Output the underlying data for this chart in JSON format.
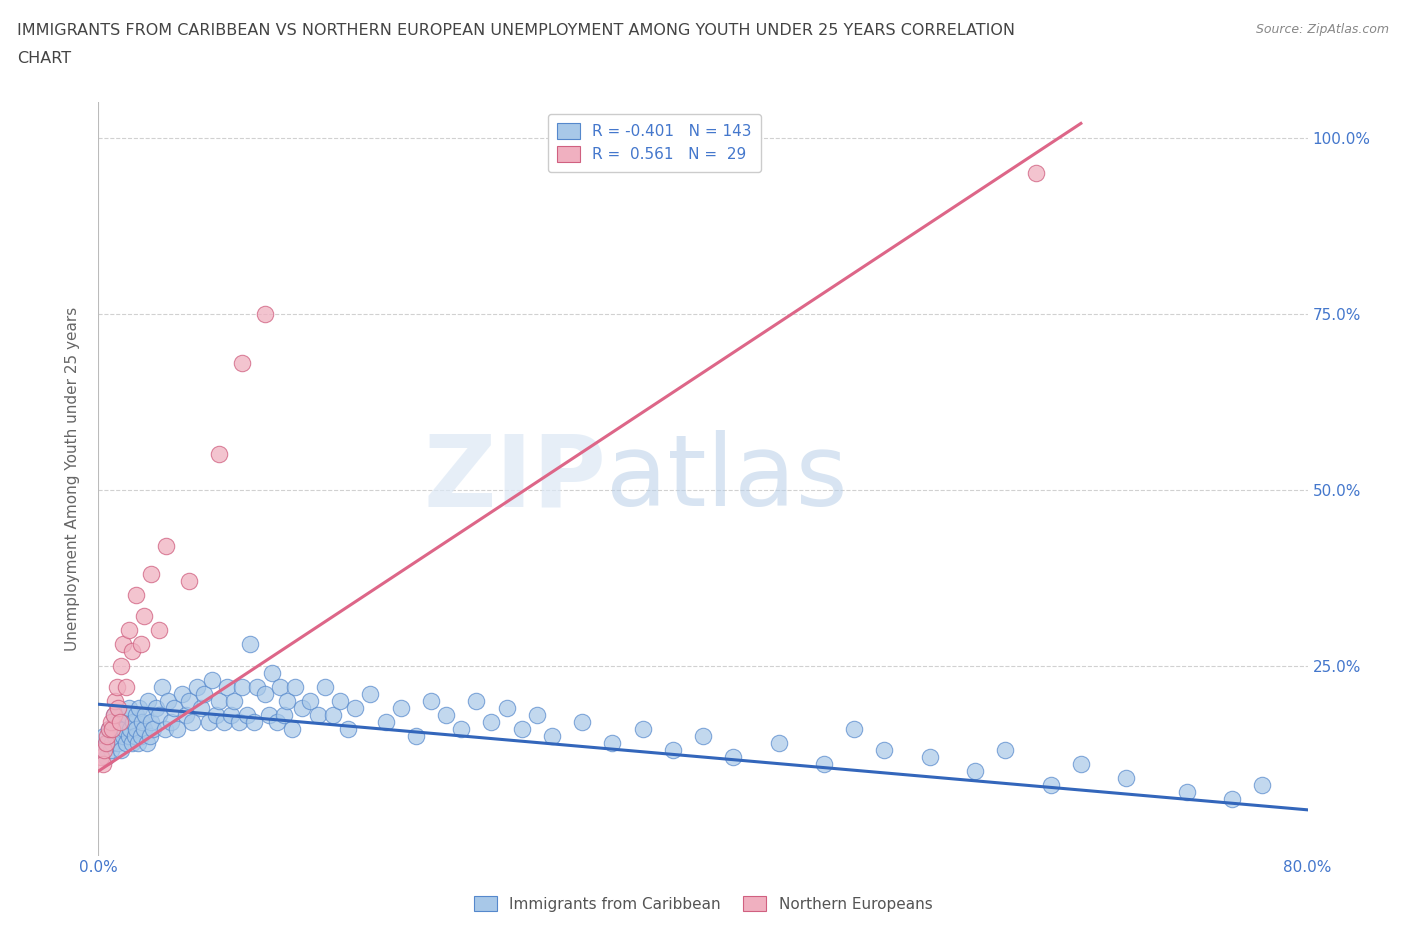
{
  "title_line1": "IMMIGRANTS FROM CARIBBEAN VS NORTHERN EUROPEAN UNEMPLOYMENT AMONG YOUTH UNDER 25 YEARS CORRELATION",
  "title_line2": "CHART",
  "source": "Source: ZipAtlas.com",
  "ylabel": "Unemployment Among Youth under 25 years",
  "xlim": [
    0.0,
    0.8
  ],
  "ylim": [
    -0.02,
    1.05
  ],
  "watermark_zip": "ZIP",
  "watermark_atlas": "atlas",
  "color_blue_fill": "#a8c8e8",
  "color_blue_edge": "#5588cc",
  "color_pink_fill": "#f0b0c0",
  "color_pink_edge": "#d06080",
  "color_blue_line": "#3366bb",
  "color_pink_line": "#dd6688",
  "color_blue_text": "#4477cc",
  "color_grid": "#cccccc",
  "color_title": "#444444",
  "background_color": "#ffffff",
  "blue_line_x0": 0.0,
  "blue_line_y0": 0.195,
  "blue_line_x1": 0.8,
  "blue_line_y1": 0.045,
  "pink_line_x0": 0.0,
  "pink_line_y0": 0.1,
  "pink_line_x1": 0.65,
  "pink_line_y1": 1.02,
  "blue_x": [
    0.002,
    0.004,
    0.005,
    0.006,
    0.007,
    0.008,
    0.009,
    0.01,
    0.01,
    0.011,
    0.012,
    0.013,
    0.014,
    0.015,
    0.015,
    0.016,
    0.017,
    0.018,
    0.019,
    0.02,
    0.02,
    0.021,
    0.022,
    0.023,
    0.024,
    0.025,
    0.025,
    0.026,
    0.027,
    0.028,
    0.029,
    0.03,
    0.031,
    0.032,
    0.033,
    0.034,
    0.035,
    0.036,
    0.038,
    0.04,
    0.042,
    0.044,
    0.046,
    0.048,
    0.05,
    0.052,
    0.055,
    0.058,
    0.06,
    0.062,
    0.065,
    0.068,
    0.07,
    0.073,
    0.075,
    0.078,
    0.08,
    0.083,
    0.085,
    0.088,
    0.09,
    0.093,
    0.095,
    0.098,
    0.1,
    0.103,
    0.105,
    0.11,
    0.113,
    0.115,
    0.118,
    0.12,
    0.123,
    0.125,
    0.128,
    0.13,
    0.135,
    0.14,
    0.145,
    0.15,
    0.155,
    0.16,
    0.165,
    0.17,
    0.18,
    0.19,
    0.2,
    0.21,
    0.22,
    0.23,
    0.24,
    0.25,
    0.26,
    0.27,
    0.28,
    0.29,
    0.3,
    0.32,
    0.34,
    0.36,
    0.38,
    0.4,
    0.42,
    0.45,
    0.48,
    0.5,
    0.52,
    0.55,
    0.58,
    0.6,
    0.63,
    0.65,
    0.68,
    0.72,
    0.75,
    0.77
  ],
  "blue_y": [
    0.13,
    0.15,
    0.12,
    0.14,
    0.16,
    0.13,
    0.14,
    0.16,
    0.18,
    0.15,
    0.17,
    0.14,
    0.16,
    0.13,
    0.17,
    0.15,
    0.16,
    0.14,
    0.18,
    0.15,
    0.19,
    0.16,
    0.14,
    0.17,
    0.15,
    0.18,
    0.16,
    0.14,
    0.19,
    0.15,
    0.17,
    0.16,
    0.18,
    0.14,
    0.2,
    0.15,
    0.17,
    0.16,
    0.19,
    0.18,
    0.22,
    0.16,
    0.2,
    0.17,
    0.19,
    0.16,
    0.21,
    0.18,
    0.2,
    0.17,
    0.22,
    0.19,
    0.21,
    0.17,
    0.23,
    0.18,
    0.2,
    0.17,
    0.22,
    0.18,
    0.2,
    0.17,
    0.22,
    0.18,
    0.28,
    0.17,
    0.22,
    0.21,
    0.18,
    0.24,
    0.17,
    0.22,
    0.18,
    0.2,
    0.16,
    0.22,
    0.19,
    0.2,
    0.18,
    0.22,
    0.18,
    0.2,
    0.16,
    0.19,
    0.21,
    0.17,
    0.19,
    0.15,
    0.2,
    0.18,
    0.16,
    0.2,
    0.17,
    0.19,
    0.16,
    0.18,
    0.15,
    0.17,
    0.14,
    0.16,
    0.13,
    0.15,
    0.12,
    0.14,
    0.11,
    0.16,
    0.13,
    0.12,
    0.1,
    0.13,
    0.08,
    0.11,
    0.09,
    0.07,
    0.06,
    0.08
  ],
  "pink_x": [
    0.002,
    0.003,
    0.004,
    0.005,
    0.006,
    0.007,
    0.008,
    0.009,
    0.01,
    0.011,
    0.012,
    0.013,
    0.014,
    0.015,
    0.016,
    0.018,
    0.02,
    0.022,
    0.025,
    0.028,
    0.03,
    0.035,
    0.04,
    0.045,
    0.06,
    0.08,
    0.095,
    0.11,
    0.62
  ],
  "pink_y": [
    0.12,
    0.11,
    0.13,
    0.14,
    0.15,
    0.16,
    0.17,
    0.16,
    0.18,
    0.2,
    0.22,
    0.19,
    0.17,
    0.25,
    0.28,
    0.22,
    0.3,
    0.27,
    0.35,
    0.28,
    0.32,
    0.38,
    0.3,
    0.42,
    0.37,
    0.55,
    0.68,
    0.75,
    0.95
  ],
  "ytick_vals": [
    0.0,
    0.25,
    0.5,
    0.75,
    1.0
  ],
  "ytick_labels_right": [
    "",
    "25.0%",
    "50.0%",
    "75.0%",
    "100.0%"
  ],
  "xtick_vals": [
    0.0,
    0.2,
    0.4,
    0.6,
    0.8
  ],
  "xtick_labels": [
    "0.0%",
    "",
    "",
    "",
    "80.0%"
  ]
}
